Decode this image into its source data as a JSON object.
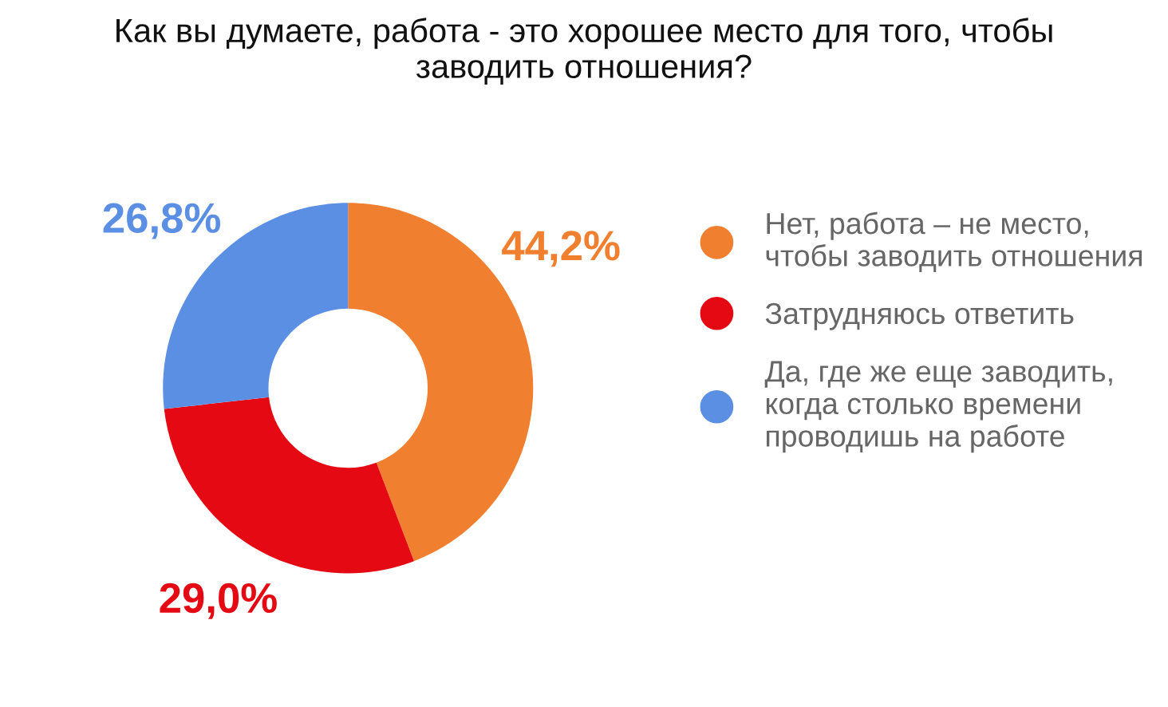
{
  "chart_data": {
    "type": "donut",
    "title": "Как вы думаете, работа - это хорошее место для того, чтобы\nзаводить отношения?",
    "categories": [
      "Нет, работа – не место,\nчтобы заводить отношения",
      "Затрудняюсь ответить",
      "Да, где же еще заводить,\nкогда столько времени\nпроводишь на работе"
    ],
    "values": [
      44.2,
      29.0,
      26.8
    ],
    "value_labels": [
      "44,2%",
      "29,0%",
      "26,8%"
    ],
    "colors": [
      "#f07f2f",
      "#e50914",
      "#5b8fe3"
    ],
    "legend": "right"
  }
}
